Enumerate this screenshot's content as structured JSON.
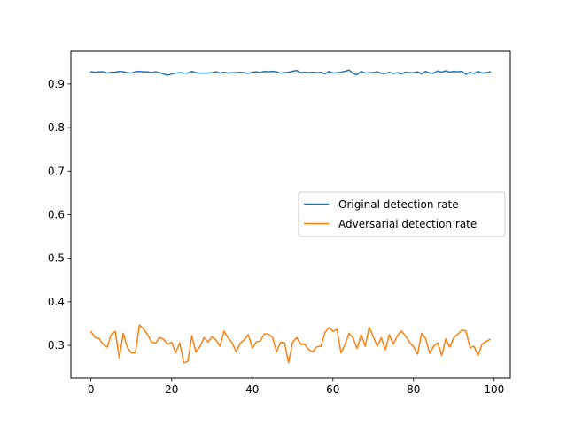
{
  "chart_data": {
    "type": "line",
    "title": "",
    "xlabel": "",
    "ylabel": "",
    "xlim": [
      -5,
      104
    ],
    "ylim": [
      0.225,
      0.975
    ],
    "xticks": [
      0,
      20,
      40,
      60,
      80,
      100
    ],
    "yticks": [
      0.3,
      0.4,
      0.5,
      0.6,
      0.7,
      0.8,
      0.9
    ],
    "grid": false,
    "legend": "center-right",
    "x": [
      0,
      1,
      2,
      3,
      4,
      5,
      6,
      7,
      8,
      9,
      10,
      11,
      12,
      13,
      14,
      15,
      16,
      17,
      18,
      19,
      20,
      21,
      22,
      23,
      24,
      25,
      26,
      27,
      28,
      29,
      30,
      31,
      32,
      33,
      34,
      35,
      36,
      37,
      38,
      39,
      40,
      41,
      42,
      43,
      44,
      45,
      46,
      47,
      48,
      49,
      50,
      51,
      52,
      53,
      54,
      55,
      56,
      57,
      58,
      59,
      60,
      61,
      62,
      63,
      64,
      65,
      66,
      67,
      68,
      69,
      70,
      71,
      72,
      73,
      74,
      75,
      76,
      77,
      78,
      79,
      80,
      81,
      82,
      83,
      84,
      85,
      86,
      87,
      88,
      89,
      90,
      91,
      92,
      93,
      94,
      95,
      96,
      97,
      98,
      99
    ],
    "series": [
      {
        "name": "Original detection rate",
        "color": "#1f77b4",
        "values": [
          0.928,
          0.927,
          0.928,
          0.928,
          0.925,
          0.927,
          0.927,
          0.929,
          0.928,
          0.926,
          0.925,
          0.928,
          0.929,
          0.928,
          0.928,
          0.926,
          0.928,
          0.926,
          0.923,
          0.92,
          0.923,
          0.925,
          0.926,
          0.925,
          0.925,
          0.929,
          0.926,
          0.925,
          0.925,
          0.925,
          0.926,
          0.928,
          0.925,
          0.927,
          0.925,
          0.926,
          0.926,
          0.927,
          0.926,
          0.924,
          0.927,
          0.928,
          0.926,
          0.929,
          0.928,
          0.929,
          0.928,
          0.925,
          0.926,
          0.927,
          0.929,
          0.931,
          0.926,
          0.927,
          0.926,
          0.927,
          0.926,
          0.927,
          0.923,
          0.929,
          0.925,
          0.926,
          0.927,
          0.929,
          0.932,
          0.924,
          0.921,
          0.929,
          0.925,
          0.926,
          0.926,
          0.928,
          0.924,
          0.924,
          0.927,
          0.924,
          0.926,
          0.923,
          0.927,
          0.926,
          0.926,
          0.928,
          0.923,
          0.929,
          0.925,
          0.925,
          0.93,
          0.927,
          0.93,
          0.927,
          0.929,
          0.928,
          0.929,
          0.922,
          0.927,
          0.924,
          0.929,
          0.925,
          0.926,
          0.928
        ]
      },
      {
        "name": "Adversarial detection rate",
        "color": "#ff7f0e",
        "values": [
          0.332,
          0.318,
          0.316,
          0.302,
          0.296,
          0.325,
          0.332,
          0.271,
          0.328,
          0.295,
          0.283,
          0.283,
          0.347,
          0.338,
          0.325,
          0.308,
          0.305,
          0.318,
          0.314,
          0.303,
          0.307,
          0.283,
          0.306,
          0.26,
          0.263,
          0.322,
          0.285,
          0.297,
          0.318,
          0.308,
          0.32,
          0.312,
          0.298,
          0.333,
          0.317,
          0.306,
          0.285,
          0.305,
          0.313,
          0.325,
          0.294,
          0.308,
          0.31,
          0.327,
          0.326,
          0.319,
          0.285,
          0.307,
          0.306,
          0.26,
          0.307,
          0.318,
          0.303,
          0.303,
          0.29,
          0.285,
          0.297,
          0.298,
          0.329,
          0.341,
          0.332,
          0.337,
          0.283,
          0.302,
          0.328,
          0.317,
          0.293,
          0.325,
          0.298,
          0.342,
          0.32,
          0.298,
          0.318,
          0.29,
          0.325,
          0.303,
          0.322,
          0.333,
          0.322,
          0.307,
          0.297,
          0.28,
          0.328,
          0.316,
          0.282,
          0.298,
          0.306,
          0.277,
          0.315,
          0.296,
          0.318,
          0.326,
          0.335,
          0.333,
          0.295,
          0.298,
          0.277,
          0.303,
          0.309,
          0.314
        ]
      }
    ]
  }
}
